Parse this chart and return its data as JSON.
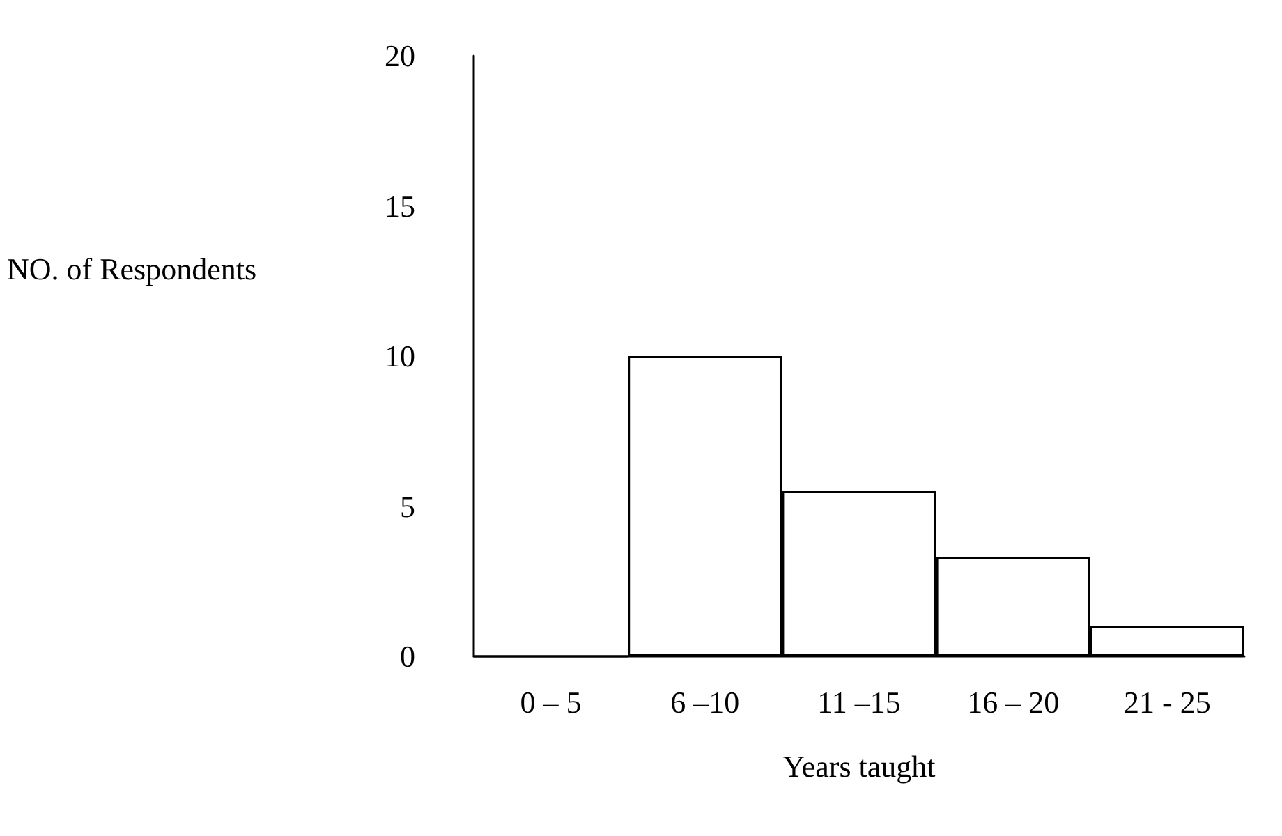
{
  "chart_data": {
    "type": "bar",
    "xlabel": "Years taught",
    "ylabel": "NO. of Respondents",
    "categories": [
      "0 – 5",
      "6 –10",
      "11 –15",
      "16 – 20",
      "21 - 25"
    ],
    "values": [
      0,
      10,
      5.5,
      3.3,
      1
    ],
    "color": "#ffffff",
    "ylim": [
      0,
      20
    ],
    "yticks": [
      0,
      5,
      10,
      15,
      20
    ]
  }
}
